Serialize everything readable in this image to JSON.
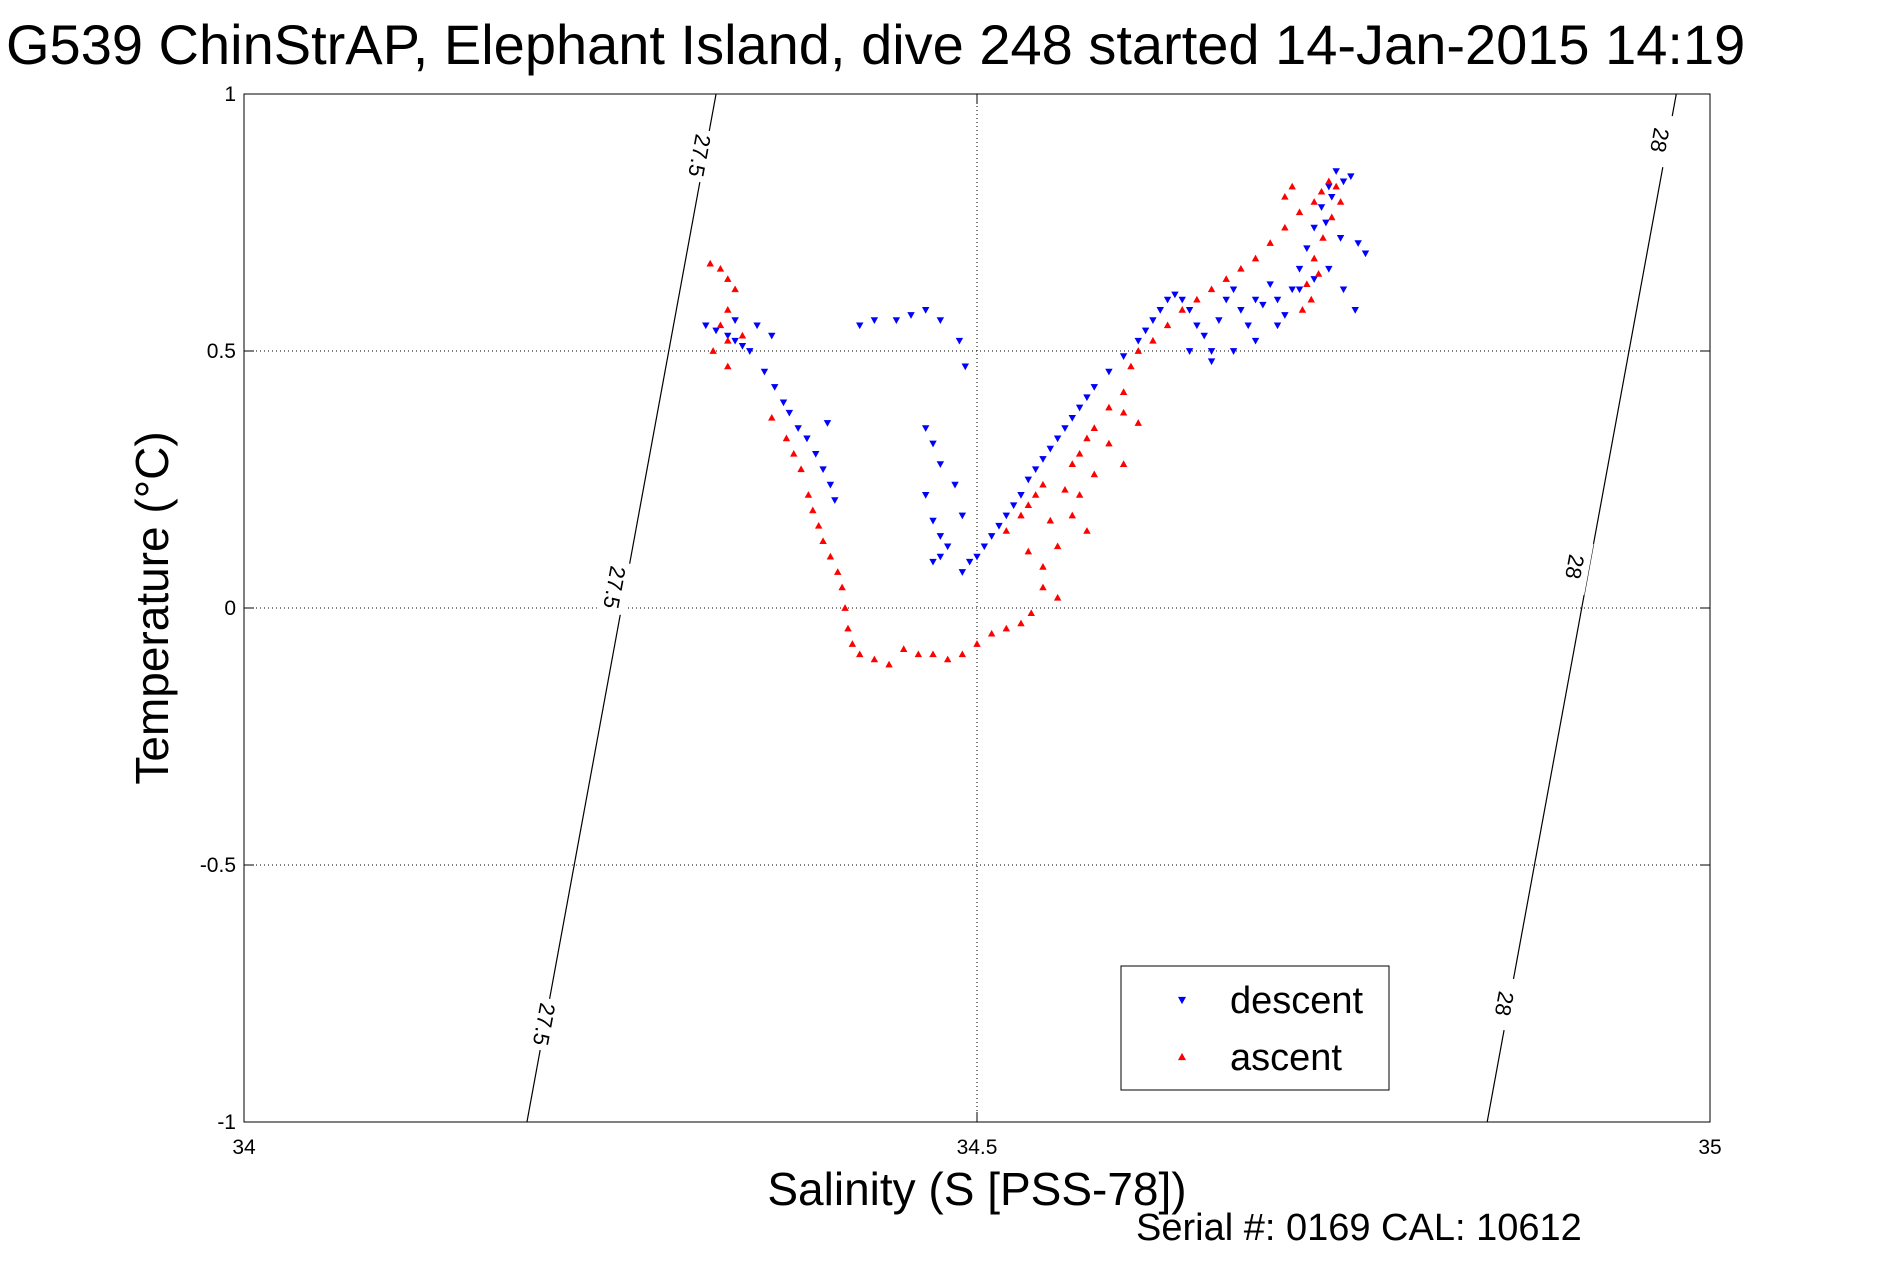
{
  "chart_data": {
    "type": "scatter",
    "title": "G539 ChinStrAP, Elephant Island, dive 248 started 14-Jan-2015 14:19",
    "xlabel": "Salinity (S [PSS-78])",
    "ylabel": "Temperature (°C)",
    "footer": "Serial #: 0169 CAL: 10612",
    "xlim": [
      34,
      35
    ],
    "ylim": [
      -1,
      1
    ],
    "xticks": [
      {
        "value": 34,
        "label": "34"
      },
      {
        "value": 34.5,
        "label": "34.5"
      },
      {
        "value": 35,
        "label": "35"
      }
    ],
    "yticks": [
      {
        "value": 1,
        "label": "1"
      },
      {
        "value": 0.5,
        "label": "0.5"
      },
      {
        "value": 0,
        "label": "0"
      },
      {
        "value": -0.5,
        "label": "-0.5"
      },
      {
        "value": -1,
        "label": "-1"
      }
    ],
    "grid": true,
    "legend": {
      "placement": "bottom-right"
    },
    "density_contours": [
      {
        "label": "27.5",
        "line": [
          [
            34.193,
            -1.0
          ],
          [
            34.322,
            1.0
          ]
        ],
        "label_points": [
          [
            34.205,
            -0.81
          ],
          [
            34.253,
            0.04
          ],
          [
            34.311,
            0.88
          ]
        ]
      },
      {
        "label": "28",
        "line": [
          [
            34.848,
            -1.0
          ],
          [
            34.977,
            1.0
          ]
        ],
        "label_points": [
          [
            34.86,
            -0.77
          ],
          [
            34.908,
            0.08
          ],
          [
            34.966,
            0.91
          ]
        ]
      }
    ],
    "series": [
      {
        "name": "descent",
        "marker": "triangle-down",
        "color": "#0000ff",
        "points": [
          [
            34.315,
            0.55
          ],
          [
            34.322,
            0.54
          ],
          [
            34.33,
            0.53
          ],
          [
            34.335,
            0.52
          ],
          [
            34.34,
            0.51
          ],
          [
            34.345,
            0.5
          ],
          [
            34.355,
            0.46
          ],
          [
            34.362,
            0.43
          ],
          [
            34.368,
            0.4
          ],
          [
            34.372,
            0.38
          ],
          [
            34.378,
            0.35
          ],
          [
            34.384,
            0.33
          ],
          [
            34.39,
            0.3
          ],
          [
            34.395,
            0.27
          ],
          [
            34.4,
            0.24
          ],
          [
            34.403,
            0.21
          ],
          [
            34.398,
            0.36
          ],
          [
            34.35,
            0.55
          ],
          [
            34.36,
            0.53
          ],
          [
            34.335,
            0.56
          ],
          [
            34.42,
            0.55
          ],
          [
            34.43,
            0.56
          ],
          [
            34.445,
            0.56
          ],
          [
            34.455,
            0.57
          ],
          [
            34.465,
            0.58
          ],
          [
            34.475,
            0.56
          ],
          [
            34.488,
            0.52
          ],
          [
            34.492,
            0.47
          ],
          [
            34.465,
            0.35
          ],
          [
            34.47,
            0.32
          ],
          [
            34.475,
            0.28
          ],
          [
            34.465,
            0.22
          ],
          [
            34.47,
            0.17
          ],
          [
            34.475,
            0.14
          ],
          [
            34.48,
            0.12
          ],
          [
            34.475,
            0.1
          ],
          [
            34.47,
            0.09
          ],
          [
            34.485,
            0.24
          ],
          [
            34.49,
            0.18
          ],
          [
            34.49,
            0.07
          ],
          [
            34.495,
            0.09
          ],
          [
            34.5,
            0.1
          ],
          [
            34.505,
            0.12
          ],
          [
            34.51,
            0.14
          ],
          [
            34.515,
            0.16
          ],
          [
            34.52,
            0.18
          ],
          [
            34.525,
            0.2
          ],
          [
            34.53,
            0.22
          ],
          [
            34.535,
            0.25
          ],
          [
            34.54,
            0.27
          ],
          [
            34.545,
            0.29
          ],
          [
            34.55,
            0.31
          ],
          [
            34.555,
            0.33
          ],
          [
            34.56,
            0.35
          ],
          [
            34.565,
            0.37
          ],
          [
            34.57,
            0.39
          ],
          [
            34.575,
            0.41
          ],
          [
            34.58,
            0.43
          ],
          [
            34.59,
            0.46
          ],
          [
            34.6,
            0.49
          ],
          [
            34.61,
            0.52
          ],
          [
            34.615,
            0.54
          ],
          [
            34.62,
            0.56
          ],
          [
            34.625,
            0.58
          ],
          [
            34.63,
            0.6
          ],
          [
            34.635,
            0.61
          ],
          [
            34.64,
            0.6
          ],
          [
            34.645,
            0.58
          ],
          [
            34.65,
            0.55
          ],
          [
            34.655,
            0.53
          ],
          [
            34.66,
            0.5
          ],
          [
            34.665,
            0.56
          ],
          [
            34.67,
            0.6
          ],
          [
            34.675,
            0.62
          ],
          [
            34.68,
            0.58
          ],
          [
            34.685,
            0.55
          ],
          [
            34.69,
            0.52
          ],
          [
            34.695,
            0.59
          ],
          [
            34.7,
            0.63
          ],
          [
            34.705,
            0.6
          ],
          [
            34.71,
            0.57
          ],
          [
            34.715,
            0.62
          ],
          [
            34.72,
            0.66
          ],
          [
            34.725,
            0.7
          ],
          [
            34.73,
            0.74
          ],
          [
            34.735,
            0.78
          ],
          [
            34.74,
            0.82
          ],
          [
            34.745,
            0.85
          ],
          [
            34.75,
            0.83
          ],
          [
            34.742,
            0.8
          ],
          [
            34.738,
            0.75
          ],
          [
            34.748,
            0.72
          ],
          [
            34.755,
            0.84
          ],
          [
            34.76,
            0.71
          ],
          [
            34.765,
            0.69
          ],
          [
            34.72,
            0.62
          ],
          [
            34.73,
            0.64
          ],
          [
            34.74,
            0.66
          ],
          [
            34.758,
            0.58
          ],
          [
            34.75,
            0.62
          ],
          [
            34.66,
            0.48
          ],
          [
            34.675,
            0.5
          ],
          [
            34.645,
            0.5
          ],
          [
            34.705,
            0.55
          ],
          [
            34.69,
            0.6
          ]
        ]
      },
      {
        "name": "ascent",
        "marker": "triangle-up",
        "color": "#ff0000",
        "points": [
          [
            34.318,
            0.67
          ],
          [
            34.325,
            0.66
          ],
          [
            34.33,
            0.64
          ],
          [
            34.335,
            0.62
          ],
          [
            34.33,
            0.58
          ],
          [
            34.325,
            0.55
          ],
          [
            34.33,
            0.52
          ],
          [
            34.34,
            0.53
          ],
          [
            34.32,
            0.5
          ],
          [
            34.33,
            0.47
          ],
          [
            34.36,
            0.37
          ],
          [
            34.37,
            0.33
          ],
          [
            34.375,
            0.3
          ],
          [
            34.38,
            0.27
          ],
          [
            34.385,
            0.22
          ],
          [
            34.388,
            0.19
          ],
          [
            34.392,
            0.16
          ],
          [
            34.395,
            0.13
          ],
          [
            34.4,
            0.1
          ],
          [
            34.405,
            0.07
          ],
          [
            34.408,
            0.04
          ],
          [
            34.41,
            0.0
          ],
          [
            34.412,
            -0.04
          ],
          [
            34.415,
            -0.07
          ],
          [
            34.42,
            -0.09
          ],
          [
            34.43,
            -0.1
          ],
          [
            34.44,
            -0.11
          ],
          [
            34.45,
            -0.08
          ],
          [
            34.46,
            -0.09
          ],
          [
            34.47,
            -0.09
          ],
          [
            34.48,
            -0.1
          ],
          [
            34.49,
            -0.09
          ],
          [
            34.5,
            -0.07
          ],
          [
            34.51,
            -0.05
          ],
          [
            34.52,
            -0.04
          ],
          [
            34.53,
            -0.03
          ],
          [
            34.537,
            -0.01
          ],
          [
            34.52,
            0.15
          ],
          [
            34.53,
            0.18
          ],
          [
            34.535,
            0.2
          ],
          [
            34.54,
            0.22
          ],
          [
            34.545,
            0.24
          ],
          [
            34.55,
            0.17
          ],
          [
            34.555,
            0.12
          ],
          [
            34.545,
            0.08
          ],
          [
            34.535,
            0.11
          ],
          [
            34.56,
            0.23
          ],
          [
            34.565,
            0.28
          ],
          [
            34.57,
            0.3
          ],
          [
            34.575,
            0.33
          ],
          [
            34.58,
            0.35
          ],
          [
            34.59,
            0.39
          ],
          [
            34.6,
            0.42
          ],
          [
            34.605,
            0.47
          ],
          [
            34.61,
            0.5
          ],
          [
            34.62,
            0.52
          ],
          [
            34.63,
            0.55
          ],
          [
            34.64,
            0.58
          ],
          [
            34.65,
            0.6
          ],
          [
            34.66,
            0.62
          ],
          [
            34.67,
            0.64
          ],
          [
            34.68,
            0.66
          ],
          [
            34.69,
            0.68
          ],
          [
            34.7,
            0.71
          ],
          [
            34.71,
            0.74
          ],
          [
            34.72,
            0.77
          ],
          [
            34.73,
            0.79
          ],
          [
            34.735,
            0.81
          ],
          [
            34.74,
            0.83
          ],
          [
            34.745,
            0.82
          ],
          [
            34.748,
            0.79
          ],
          [
            34.742,
            0.76
          ],
          [
            34.736,
            0.72
          ],
          [
            34.73,
            0.68
          ],
          [
            34.725,
            0.63
          ],
          [
            34.722,
            0.58
          ],
          [
            34.728,
            0.6
          ],
          [
            34.733,
            0.65
          ],
          [
            34.71,
            0.8
          ],
          [
            34.715,
            0.82
          ],
          [
            34.6,
            0.28
          ],
          [
            34.59,
            0.32
          ],
          [
            34.58,
            0.26
          ],
          [
            34.57,
            0.22
          ],
          [
            34.565,
            0.18
          ],
          [
            34.555,
            0.02
          ],
          [
            34.545,
            0.04
          ],
          [
            34.6,
            0.38
          ],
          [
            34.61,
            0.36
          ],
          [
            34.575,
            0.15
          ]
        ]
      }
    ]
  }
}
